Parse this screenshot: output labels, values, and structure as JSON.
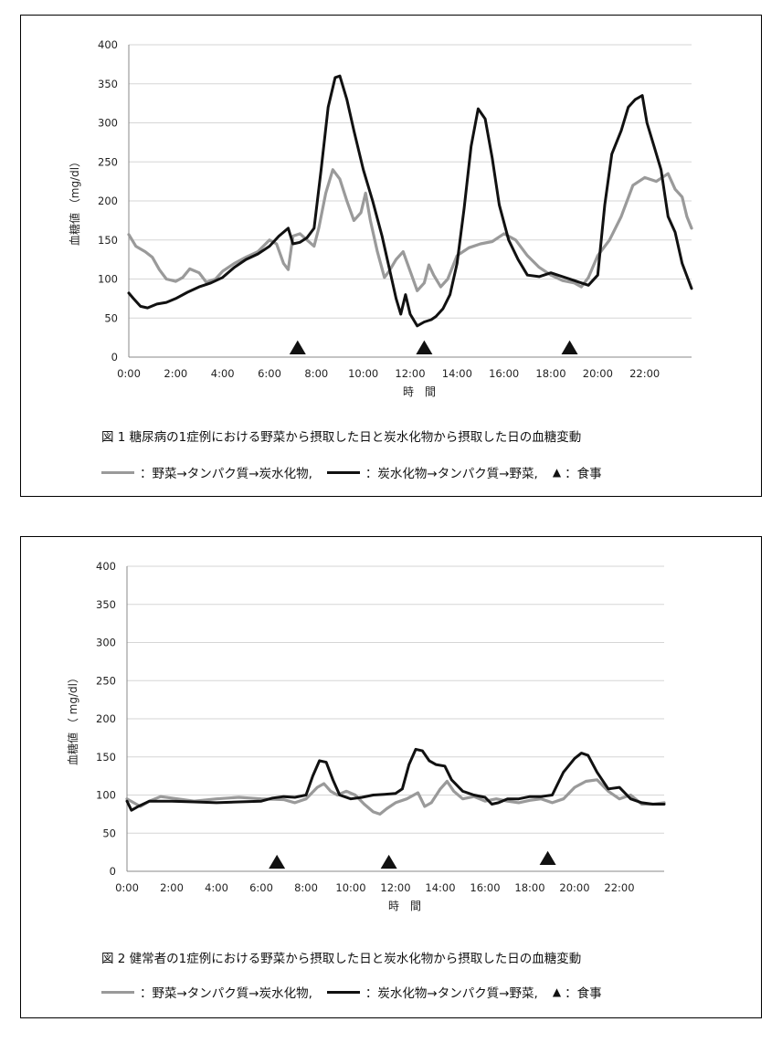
{
  "chart_data": [
    {
      "type": "line",
      "caption": "図 1  糖尿病の1症例における野菜から摂取した日と炭水化物から摂取した日の血糖変動",
      "xlabel": "時　間",
      "ylabel": "血糖値 （mg/dl）",
      "ylim": [
        0,
        400
      ],
      "xlim": [
        0,
        24
      ],
      "x_ticks": [
        "0:00",
        "2:00",
        "4:00",
        "6:00",
        "8:00",
        "10:00",
        "12:00",
        "14:00",
        "16:00",
        "18:00",
        "20:00",
        "22:00"
      ],
      "y_ticks": [
        0,
        50,
        100,
        150,
        200,
        250,
        300,
        350,
        400
      ],
      "grid": "horizontal",
      "series": [
        {
          "name": "：野菜→タンパク質→炭水化物,",
          "color": "#9a9a9a",
          "points": [
            [
              0,
              157
            ],
            [
              0.3,
              142
            ],
            [
              0.7,
              135
            ],
            [
              1.0,
              128
            ],
            [
              1.3,
              112
            ],
            [
              1.6,
              100
            ],
            [
              2.0,
              97
            ],
            [
              2.3,
              102
            ],
            [
              2.6,
              113
            ],
            [
              3.0,
              108
            ],
            [
              3.3,
              96
            ],
            [
              3.7,
              100
            ],
            [
              4.0,
              110
            ],
            [
              4.5,
              120
            ],
            [
              5.0,
              128
            ],
            [
              5.5,
              135
            ],
            [
              6.0,
              150
            ],
            [
              6.3,
              145
            ],
            [
              6.6,
              120
            ],
            [
              6.8,
              112
            ],
            [
              7.0,
              155
            ],
            [
              7.3,
              158
            ],
            [
              7.6,
              150
            ],
            [
              7.9,
              142
            ],
            [
              8.1,
              165
            ],
            [
              8.4,
              210
            ],
            [
              8.7,
              240
            ],
            [
              9.0,
              228
            ],
            [
              9.3,
              200
            ],
            [
              9.6,
              175
            ],
            [
              9.9,
              185
            ],
            [
              10.1,
              210
            ],
            [
              10.3,
              175
            ],
            [
              10.6,
              135
            ],
            [
              10.9,
              102
            ],
            [
              11.1,
              110
            ],
            [
              11.4,
              125
            ],
            [
              11.7,
              135
            ],
            [
              12.0,
              110
            ],
            [
              12.3,
              85
            ],
            [
              12.6,
              95
            ],
            [
              12.8,
              118
            ],
            [
              13.0,
              105
            ],
            [
              13.3,
              90
            ],
            [
              13.6,
              100
            ],
            [
              14.0,
              130
            ],
            [
              14.5,
              140
            ],
            [
              15.0,
              145
            ],
            [
              15.5,
              148
            ],
            [
              16.0,
              158
            ],
            [
              16.5,
              150
            ],
            [
              17.0,
              130
            ],
            [
              17.5,
              115
            ],
            [
              18.0,
              105
            ],
            [
              18.5,
              98
            ],
            [
              19.0,
              95
            ],
            [
              19.3,
              90
            ],
            [
              19.6,
              102
            ],
            [
              20.0,
              130
            ],
            [
              20.5,
              150
            ],
            [
              21.0,
              180
            ],
            [
              21.5,
              220
            ],
            [
              22.0,
              230
            ],
            [
              22.5,
              225
            ],
            [
              23.0,
              235
            ],
            [
              23.3,
              215
            ],
            [
              23.6,
              205
            ],
            [
              23.8,
              180
            ],
            [
              24.0,
              165
            ]
          ]
        },
        {
          "name": "：炭水化物→タンパク質→野菜,",
          "color": "#111111",
          "points": [
            [
              0,
              82
            ],
            [
              0.2,
              75
            ],
            [
              0.5,
              65
            ],
            [
              0.8,
              63
            ],
            [
              1.2,
              68
            ],
            [
              1.6,
              70
            ],
            [
              2.0,
              75
            ],
            [
              2.5,
              83
            ],
            [
              3.0,
              90
            ],
            [
              3.5,
              95
            ],
            [
              4.0,
              102
            ],
            [
              4.5,
              115
            ],
            [
              5.0,
              125
            ],
            [
              5.5,
              132
            ],
            [
              6.0,
              142
            ],
            [
              6.4,
              155
            ],
            [
              6.8,
              165
            ],
            [
              7.0,
              145
            ],
            [
              7.3,
              147
            ],
            [
              7.6,
              153
            ],
            [
              7.9,
              165
            ],
            [
              8.2,
              240
            ],
            [
              8.5,
              320
            ],
            [
              8.8,
              358
            ],
            [
              9.0,
              360
            ],
            [
              9.3,
              330
            ],
            [
              9.6,
              290
            ],
            [
              10.0,
              240
            ],
            [
              10.4,
              200
            ],
            [
              10.8,
              155
            ],
            [
              11.1,
              115
            ],
            [
              11.4,
              75
            ],
            [
              11.6,
              55
            ],
            [
              11.8,
              80
            ],
            [
              12.0,
              55
            ],
            [
              12.3,
              40
            ],
            [
              12.6,
              45
            ],
            [
              12.9,
              48
            ],
            [
              13.1,
              52
            ],
            [
              13.4,
              62
            ],
            [
              13.7,
              80
            ],
            [
              14.0,
              120
            ],
            [
              14.3,
              190
            ],
            [
              14.6,
              270
            ],
            [
              14.9,
              318
            ],
            [
              15.2,
              305
            ],
            [
              15.5,
              255
            ],
            [
              15.8,
              195
            ],
            [
              16.2,
              150
            ],
            [
              16.6,
              125
            ],
            [
              17.0,
              105
            ],
            [
              17.5,
              103
            ],
            [
              18.0,
              108
            ],
            [
              18.5,
              103
            ],
            [
              19.0,
              98
            ],
            [
              19.3,
              95
            ],
            [
              19.6,
              92
            ],
            [
              20.0,
              105
            ],
            [
              20.3,
              195
            ],
            [
              20.6,
              260
            ],
            [
              21.0,
              290
            ],
            [
              21.3,
              320
            ],
            [
              21.6,
              330
            ],
            [
              21.9,
              335
            ],
            [
              22.1,
              300
            ],
            [
              22.4,
              270
            ],
            [
              22.7,
              240
            ],
            [
              23.0,
              180
            ],
            [
              23.3,
              160
            ],
            [
              23.6,
              120
            ],
            [
              24.0,
              88
            ]
          ]
        }
      ],
      "meals_x": [
        7.2,
        12.6,
        18.8
      ]
    },
    {
      "type": "line",
      "caption": "図 2  健常者の1症例における野菜から摂取した日と炭水化物から摂取した日の血糖変動",
      "xlabel": "時　間",
      "ylabel": "血糖値 （ mg/dl）",
      "ylim": [
        0,
        400
      ],
      "xlim": [
        0,
        24
      ],
      "x_ticks": [
        "0:00",
        "2:00",
        "4:00",
        "6:00",
        "8:00",
        "10:00",
        "12:00",
        "14:00",
        "16:00",
        "18:00",
        "20:00",
        "22:00"
      ],
      "y_ticks": [
        0,
        50,
        100,
        150,
        200,
        250,
        300,
        350,
        400
      ],
      "grid": "horizontal",
      "series": [
        {
          "name": "：野菜→タンパク質→炭水化物,",
          "color": "#9a9a9a",
          "points": [
            [
              0,
              95
            ],
            [
              0.3,
              90
            ],
            [
              0.6,
              85
            ],
            [
              1.0,
              92
            ],
            [
              1.5,
              98
            ],
            [
              2.0,
              96
            ],
            [
              3.0,
              92
            ],
            [
              4.0,
              95
            ],
            [
              5.0,
              97
            ],
            [
              6.0,
              95
            ],
            [
              7.0,
              94
            ],
            [
              7.5,
              90
            ],
            [
              8.0,
              95
            ],
            [
              8.5,
              110
            ],
            [
              8.8,
              115
            ],
            [
              9.1,
              105
            ],
            [
              9.4,
              100
            ],
            [
              9.8,
              105
            ],
            [
              10.2,
              100
            ],
            [
              10.6,
              88
            ],
            [
              11.0,
              78
            ],
            [
              11.3,
              75
            ],
            [
              11.6,
              82
            ],
            [
              12.0,
              90
            ],
            [
              12.5,
              95
            ],
            [
              13.0,
              103
            ],
            [
              13.3,
              85
            ],
            [
              13.6,
              90
            ],
            [
              14.0,
              108
            ],
            [
              14.3,
              118
            ],
            [
              14.6,
              105
            ],
            [
              15.0,
              95
            ],
            [
              15.5,
              98
            ],
            [
              16.0,
              92
            ],
            [
              16.5,
              95
            ],
            [
              17.0,
              92
            ],
            [
              17.5,
              90
            ],
            [
              18.0,
              93
            ],
            [
              18.5,
              95
            ],
            [
              19.0,
              90
            ],
            [
              19.5,
              95
            ],
            [
              20.0,
              110
            ],
            [
              20.5,
              118
            ],
            [
              21.0,
              120
            ],
            [
              21.5,
              105
            ],
            [
              22.0,
              95
            ],
            [
              22.5,
              100
            ],
            [
              23.0,
              88
            ],
            [
              23.5,
              88
            ],
            [
              24.0,
              90
            ]
          ]
        },
        {
          "name": "：炭水化物→タンパク質→野菜,",
          "color": "#111111",
          "points": [
            [
              0,
              92
            ],
            [
              0.2,
              80
            ],
            [
              0.5,
              85
            ],
            [
              1.0,
              92
            ],
            [
              2.0,
              92
            ],
            [
              3.0,
              91
            ],
            [
              4.0,
              90
            ],
            [
              5.0,
              91
            ],
            [
              6.0,
              92
            ],
            [
              6.5,
              96
            ],
            [
              7.0,
              98
            ],
            [
              7.5,
              97
            ],
            [
              8.0,
              100
            ],
            [
              8.3,
              125
            ],
            [
              8.6,
              145
            ],
            [
              8.9,
              143
            ],
            [
              9.2,
              120
            ],
            [
              9.5,
              100
            ],
            [
              10.0,
              95
            ],
            [
              10.5,
              97
            ],
            [
              11.0,
              100
            ],
            [
              11.5,
              101
            ],
            [
              12.0,
              102
            ],
            [
              12.3,
              108
            ],
            [
              12.6,
              140
            ],
            [
              12.9,
              160
            ],
            [
              13.2,
              158
            ],
            [
              13.5,
              145
            ],
            [
              13.8,
              140
            ],
            [
              14.2,
              138
            ],
            [
              14.5,
              120
            ],
            [
              15.0,
              105
            ],
            [
              15.5,
              100
            ],
            [
              16.0,
              97
            ],
            [
              16.3,
              88
            ],
            [
              16.6,
              90
            ],
            [
              17.0,
              95
            ],
            [
              17.5,
              95
            ],
            [
              18.0,
              98
            ],
            [
              18.5,
              98
            ],
            [
              19.0,
              100
            ],
            [
              19.5,
              130
            ],
            [
              20.0,
              148
            ],
            [
              20.3,
              155
            ],
            [
              20.6,
              152
            ],
            [
              21.0,
              130
            ],
            [
              21.5,
              108
            ],
            [
              22.0,
              110
            ],
            [
              22.5,
              95
            ],
            [
              23.0,
              90
            ],
            [
              23.5,
              88
            ],
            [
              24.0,
              88
            ]
          ]
        }
      ],
      "meals_x": [
        6.7,
        11.7,
        18.8
      ],
      "meals_y": [
        12,
        12,
        17
      ]
    }
  ],
  "legend": {
    "veg_first": "：野菜→タンパク質→炭水化物,",
    "carb_first": "：炭水化物→タンパク質→野菜,",
    "meal": "：食事"
  }
}
